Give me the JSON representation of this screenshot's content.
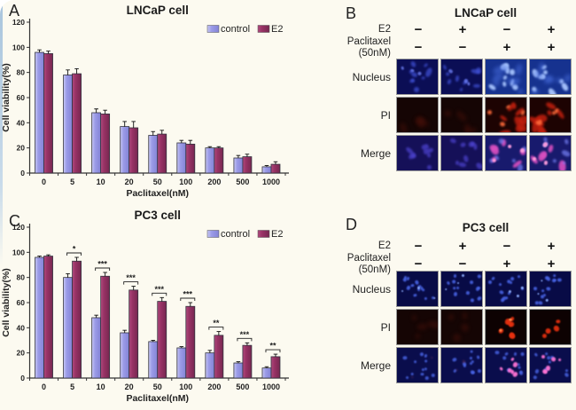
{
  "figure": {
    "background": "#fcfaf0",
    "accent_border_color": "#a9c5dd"
  },
  "colors": {
    "control": "#9c9ce8",
    "control_light": "#c9c9f4",
    "control_dark": "#8383d6",
    "e2": "#993366",
    "e2_light": "#b04b7e",
    "e2_dark": "#762750",
    "axis": "#333333",
    "bar_border": "#33333f"
  },
  "panels": {
    "a": {
      "label": "A",
      "title": "LNCaP cell"
    },
    "b": {
      "label": "B",
      "title": "LNCaP cell",
      "conditions": [
        {
          "label": "E2",
          "label2": "",
          "values": [
            "−",
            "+",
            "−",
            "+"
          ]
        },
        {
          "label": "Paclitaxel",
          "label2": "(50nM)",
          "values": [
            "−",
            "−",
            "+",
            "+"
          ]
        }
      ],
      "rows": [
        {
          "label": "Nucleus",
          "cells": [
            "b-nuc-dim",
            "b-nuc-dim",
            "b-nuc-bright",
            "b-nuc-bright"
          ]
        },
        {
          "label": "PI",
          "cells": [
            "pi-dark",
            "pi-dark",
            "b-pi-red",
            "b-pi-red"
          ]
        },
        {
          "label": "Merge",
          "cells": [
            "b-mrg-dim",
            "b-mrg-dim",
            "b-mrg-pink",
            "b-mrg-pink"
          ]
        }
      ]
    },
    "c": {
      "label": "C",
      "title": "PC3 cell"
    },
    "d": {
      "label": "D",
      "title": "PC3 cell",
      "conditions": [
        {
          "label": "E2",
          "label2": "",
          "values": [
            "−",
            "+",
            "−",
            "+"
          ]
        },
        {
          "label": "Paclitaxel",
          "label2": "(50nM)",
          "values": [
            "−",
            "−",
            "+",
            "+"
          ]
        }
      ],
      "rows": [
        {
          "label": "Nucleus",
          "cells": [
            "d-nuc",
            "d-nuc",
            "d-nuc",
            "d-nuc"
          ]
        },
        {
          "label": "PI",
          "cells": [
            "pi-dark",
            "pi-dark",
            "d-pi-red",
            "d-pi-few"
          ]
        },
        {
          "label": "Merge",
          "cells": [
            "d-mrg",
            "d-mrg",
            "d-mrg-pink",
            "d-mrg-pink"
          ]
        }
      ]
    }
  },
  "appearances": {
    "b-nuc-dim": {
      "bg": "#0b0e55",
      "dots": [
        {
          "color": "#4152d8",
          "count": 9,
          "size": [
            3,
            6
          ],
          "aspect": 2.2,
          "op": 0.7,
          "blur": 1
        },
        {
          "color": "#6b7cf0",
          "count": 3,
          "size": [
            2,
            4
          ],
          "aspect": 1.4,
          "op": 0.8,
          "blur": 0.8
        }
      ]
    },
    "b-nuc-bright": {
      "bg": "#16328f",
      "dots": [
        {
          "color": "#a9c6ff",
          "count": 9,
          "size": [
            4,
            7
          ],
          "aspect": 1.9,
          "op": 0.95,
          "blur": 1
        },
        {
          "color": "#4a6fe0",
          "count": 7,
          "size": [
            5,
            9
          ],
          "aspect": 2.2,
          "op": 0.5,
          "blur": 2
        }
      ]
    },
    "pi-dark": {
      "bg": "#150504",
      "dots": [
        {
          "color": "#461009",
          "count": 4,
          "size": [
            5,
            9
          ],
          "aspect": 2,
          "op": 0.5,
          "blur": 2
        }
      ]
    },
    "b-pi-red": {
      "bg": "#1d0302",
      "dots": [
        {
          "color": "#c21f0e",
          "count": 8,
          "size": [
            4,
            10
          ],
          "aspect": 3,
          "op": 0.85,
          "blur": 1.2
        },
        {
          "color": "#ff6a3a",
          "count": 4,
          "size": [
            3,
            5
          ],
          "aspect": 1.5,
          "op": 0.9,
          "blur": 1
        }
      ]
    },
    "b-mrg-dim": {
      "bg": "#151058",
      "dots": [
        {
          "color": "#4d43cf",
          "count": 9,
          "size": [
            3,
            6
          ],
          "aspect": 2,
          "op": 0.7,
          "blur": 1
        }
      ]
    },
    "b-mrg-pink": {
      "bg": "#181a6d",
      "dots": [
        {
          "color": "#d94fc0",
          "count": 6,
          "size": [
            4,
            9
          ],
          "aspect": 2.4,
          "op": 0.9,
          "blur": 1
        },
        {
          "color": "#7d88ff",
          "count": 6,
          "size": [
            3,
            6
          ],
          "aspect": 1.8,
          "op": 0.65,
          "blur": 1
        },
        {
          "color": "#ff9ede",
          "count": 3,
          "size": [
            3,
            5
          ],
          "aspect": 1.2,
          "op": 0.95,
          "blur": 0.8
        }
      ]
    },
    "d-nuc": {
      "bg": "#080b46",
      "dots": [
        {
          "color": "#4a67ea",
          "count": 13,
          "size": [
            2.5,
            4.5
          ],
          "aspect": 1.25,
          "op": 0.85,
          "blur": 0.7
        },
        {
          "color": "#8fb0ff",
          "count": 3,
          "size": [
            2,
            3
          ],
          "aspect": 1,
          "op": 0.9,
          "blur": 0.5
        }
      ]
    },
    "d-pi-red": {
      "bg": "#0d0202",
      "dots": [
        {
          "color": "#e5300f",
          "count": 9,
          "size": [
            3.5,
            6.5
          ],
          "aspect": 1.2,
          "op": 0.92,
          "blur": 0.7,
          "cluster": true
        },
        {
          "color": "#ff8a4d",
          "count": 3,
          "size": [
            2,
            3.5
          ],
          "aspect": 1,
          "op": 0.9,
          "blur": 0.4,
          "cluster": true
        }
      ]
    },
    "d-pi-few": {
      "bg": "#0d0202",
      "dots": [
        {
          "color": "#e5300f",
          "count": 4,
          "size": [
            4,
            6.5
          ],
          "aspect": 1.15,
          "op": 0.92,
          "blur": 0.7,
          "cluster": true
        }
      ]
    },
    "d-mrg": {
      "bg": "#0a0d4c",
      "dots": [
        {
          "color": "#4a67ea",
          "count": 12,
          "size": [
            2.5,
            4.5
          ],
          "aspect": 1.25,
          "op": 0.8,
          "blur": 0.7
        },
        {
          "color": "#93405c",
          "count": 2,
          "size": [
            2,
            3
          ],
          "aspect": 1,
          "op": 0.5,
          "blur": 1
        }
      ]
    },
    "d-mrg-pink": {
      "bg": "#0a0d4c",
      "dots": [
        {
          "color": "#4a67ea",
          "count": 10,
          "size": [
            2.5,
            4.5
          ],
          "aspect": 1.25,
          "op": 0.78,
          "blur": 0.7
        },
        {
          "color": "#ff74d4",
          "count": 6,
          "size": [
            3,
            5.5
          ],
          "aspect": 1.1,
          "op": 0.95,
          "blur": 0.7,
          "cluster": true
        }
      ]
    }
  },
  "chart_data": [
    {
      "id": "chart-a",
      "panel": "A",
      "type": "bar",
      "title": "LNCaP cell",
      "xlabel": "Paclitaxel(nM)",
      "ylabel": "Cell viability(%)",
      "ylim": [
        0,
        120
      ],
      "yticks": [
        0,
        20,
        40,
        60,
        80,
        100,
        120
      ],
      "grid": false,
      "categories": [
        "0",
        "5",
        "10",
        "20",
        "50",
        "100",
        "200",
        "500",
        "1000"
      ],
      "legend": [
        "control",
        "E2"
      ],
      "legend_position": "top-right",
      "series": [
        {
          "name": "control",
          "values": [
            96,
            78,
            48,
            37,
            30,
            24,
            20,
            12,
            5
          ],
          "errors": [
            2,
            4,
            3,
            4,
            3,
            2,
            1,
            2,
            1
          ]
        },
        {
          "name": "E2",
          "values": [
            95,
            79,
            47,
            36,
            31,
            23,
            20,
            13,
            7
          ],
          "errors": [
            2,
            4,
            3,
            5,
            3,
            3,
            1,
            2,
            2
          ]
        }
      ],
      "significance": [
        "",
        "",
        "",
        "",
        "",
        "",
        "",
        "",
        ""
      ]
    },
    {
      "id": "chart-c",
      "panel": "C",
      "type": "bar",
      "title": "PC3 cell",
      "xlabel": "Paclitaxel(nM)",
      "ylabel": "Cell viability(%)",
      "ylim": [
        0,
        120
      ],
      "yticks": [
        0,
        20,
        40,
        60,
        80,
        100,
        120
      ],
      "grid": false,
      "categories": [
        "0",
        "5",
        "10",
        "20",
        "50",
        "100",
        "200",
        "500",
        "1000"
      ],
      "legend": [
        "control",
        "E2"
      ],
      "legend_position": "top-right",
      "series": [
        {
          "name": "control",
          "values": [
            96,
            80,
            48,
            36,
            29,
            24,
            20,
            12,
            8
          ],
          "errors": [
            1,
            3,
            2,
            2,
            1,
            1,
            2,
            1,
            1
          ]
        },
        {
          "name": "E2",
          "values": [
            97,
            93,
            81,
            70,
            61,
            57,
            34,
            26,
            17
          ],
          "errors": [
            1,
            3,
            3,
            3,
            3,
            3,
            3,
            2,
            2
          ]
        }
      ],
      "significance": [
        "",
        "*",
        "***",
        "***",
        "***",
        "***",
        "**",
        "***",
        "**"
      ]
    }
  ]
}
